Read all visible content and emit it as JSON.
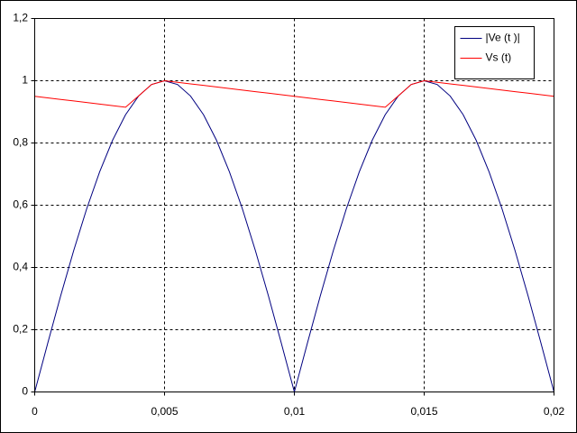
{
  "chart_data": {
    "type": "line",
    "x": [
      0,
      0.0005,
      0.001,
      0.0015,
      0.002,
      0.0025,
      0.003,
      0.0035,
      0.004,
      0.0045,
      0.005,
      0.0055,
      0.006,
      0.0065,
      0.007,
      0.0075,
      0.008,
      0.0085,
      0.009,
      0.0095,
      0.01,
      0.0105,
      0.011,
      0.0115,
      0.012,
      0.0125,
      0.013,
      0.0135,
      0.014,
      0.0145,
      0.015,
      0.0155,
      0.016,
      0.0165,
      0.017,
      0.0175,
      0.018,
      0.0185,
      0.019,
      0.0195,
      0.02
    ],
    "series": [
      {
        "name": "|Ve (t )|",
        "color": "#000080",
        "values": [
          0,
          0.156,
          0.309,
          0.454,
          0.588,
          0.707,
          0.809,
          0.891,
          0.951,
          0.988,
          1,
          0.988,
          0.951,
          0.891,
          0.809,
          0.707,
          0.588,
          0.454,
          0.309,
          0.156,
          0,
          0.156,
          0.309,
          0.454,
          0.588,
          0.707,
          0.809,
          0.891,
          0.951,
          0.988,
          1,
          0.988,
          0.951,
          0.891,
          0.809,
          0.707,
          0.588,
          0.454,
          0.309,
          0.156,
          0
        ]
      },
      {
        "name": "Vs (t)",
        "color": "#ff0000",
        "values": [
          0.95,
          0.945,
          0.94,
          0.935,
          0.93,
          0.925,
          0.92,
          0.915,
          0.951,
          0.988,
          1,
          0.995,
          0.99,
          0.985,
          0.98,
          0.975,
          0.97,
          0.965,
          0.96,
          0.955,
          0.95,
          0.945,
          0.94,
          0.935,
          0.93,
          0.925,
          0.92,
          0.915,
          0.951,
          0.988,
          1,
          0.995,
          0.99,
          0.985,
          0.98,
          0.975,
          0.97,
          0.965,
          0.96,
          0.955,
          0.95
        ]
      }
    ],
    "xlim": [
      0,
      0.02
    ],
    "xticks": [
      0,
      {
        "value": 0.005,
        "label": "0,005"
      },
      {
        "value": 0.01,
        "label": "0,01"
      },
      {
        "value": 0.015,
        "label": "0,015"
      },
      {
        "value": 0.02,
        "label": "0,02"
      }
    ],
    "ylim": [
      0,
      1.2
    ],
    "yticks": [
      0,
      {
        "value": 0.2,
        "label": "0,2"
      },
      {
        "value": 0.4,
        "label": "0,4"
      },
      {
        "value": 0.6,
        "label": "0,6"
      },
      {
        "value": 0.8,
        "label": "0,8"
      },
      1,
      {
        "value": 1.2,
        "label": "1,2"
      }
    ],
    "grid": true,
    "legend": "upper right"
  }
}
